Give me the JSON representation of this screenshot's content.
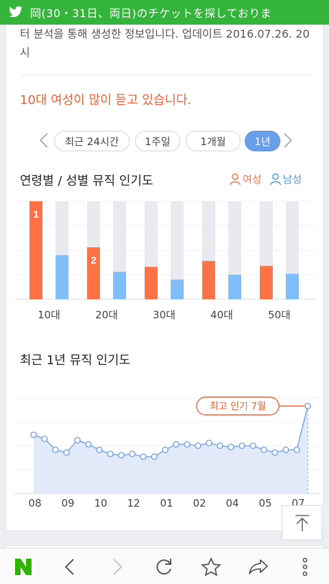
{
  "status_bar": {
    "app_icon": "twitter-bird-icon",
    "ticker_text": "岡(30・31日、両日)のチケットを探しておりま"
  },
  "intro_text": "터 분석을 통해 생성한 정보입니다. 업데이트 2016.07.26. 20시",
  "headline": "10대 여성이 많이 듣고 있습니다.",
  "period_tabs": {
    "items": [
      "최근 24시간",
      "1주일",
      "1개월",
      "1년"
    ],
    "selected": "1년"
  },
  "age_gender": {
    "title": "연령별 / 성별 뮤직 인기도",
    "legend": {
      "female": "여성",
      "male": "남성"
    },
    "colors": {
      "female": "#ff7247",
      "male": "#80bdfb",
      "track": "#e9eaef"
    }
  },
  "trend": {
    "title": "최근 1년 뮤직 인기도",
    "peak_label": "최고 인기 7월",
    "colors": {
      "line": "#7fa8e6",
      "fill": "#e2eafa"
    }
  },
  "chart_data": [
    {
      "type": "bar",
      "title": "연령별 / 성별 뮤직 인기도",
      "categories": [
        "10대",
        "20대",
        "30대",
        "40대",
        "50대"
      ],
      "series": [
        {
          "name": "여성",
          "values": [
            100,
            53,
            33,
            39,
            34
          ],
          "rank_labels": [
            "1",
            "2",
            "",
            "",
            ""
          ]
        },
        {
          "name": "남성",
          "values": [
            45,
            28,
            20,
            25,
            26
          ]
        }
      ],
      "ylim": [
        0,
        100
      ],
      "grid": true
    },
    {
      "type": "area",
      "title": "최근 1년 뮤직 인기도",
      "x_tick_labels": [
        "08",
        "09",
        "10",
        "12",
        "01",
        "02",
        "04",
        "05",
        "07"
      ],
      "values": [
        63,
        60,
        52,
        50,
        59,
        56,
        52,
        49,
        48,
        49,
        47,
        47,
        52,
        56,
        56,
        55,
        57,
        55,
        54,
        55,
        55,
        52,
        50,
        52,
        52,
        84
      ],
      "ylim": [
        20,
        90
      ],
      "annotation": "최고 인기 7월",
      "grid": true
    }
  ],
  "toolbar": {
    "items": [
      "naver-logo-icon",
      "back-icon",
      "forward-icon",
      "refresh-icon",
      "bookmark-star-icon",
      "share-icon",
      "more-icon"
    ]
  }
}
